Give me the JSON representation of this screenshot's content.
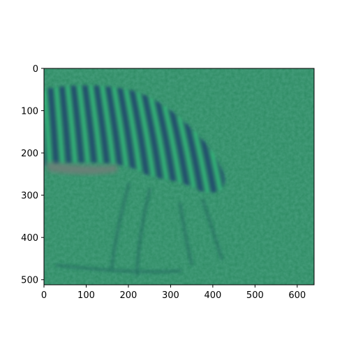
{
  "image": {
    "subject": "zebra-grazing",
    "colormap": "viridis",
    "palette": {
      "background": "#2e8b63",
      "background_dark": "#24785a",
      "stripe_dark": "#1f3f6e",
      "stripe_light": "#35c07a",
      "blur_band": "#6e7f78"
    }
  },
  "axes": {
    "x": {
      "ticks": [
        "0",
        "100",
        "200",
        "300",
        "400",
        "500",
        "600"
      ],
      "range": [
        0,
        640
      ]
    },
    "y": {
      "ticks": [
        "0",
        "100",
        "200",
        "300",
        "400",
        "500"
      ],
      "range": [
        0,
        512
      ]
    }
  }
}
